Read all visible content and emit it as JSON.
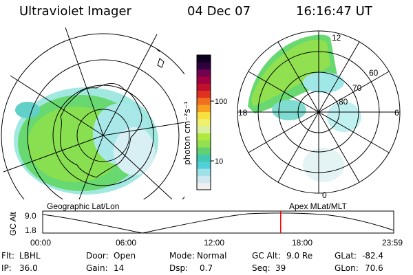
{
  "header": {
    "title": "Ultraviolet Imager",
    "date": "04 Dec 07",
    "time": "16:16:47 UT"
  },
  "colorbar": {
    "label": "photon cm⁻²s⁻¹",
    "ticks": [
      "100",
      "10"
    ],
    "colors": [
      "#f0f0f0",
      "#cfe8f0",
      "#a0e0e8",
      "#50d0d8",
      "#40c8b0",
      "#60d070",
      "#90e050",
      "#b0e840",
      "#d8f0a0",
      "#f0f070",
      "#f8e040",
      "#f8a020",
      "#f07020",
      "#e03020",
      "#c01030",
      "#a00040",
      "#700050",
      "#300040",
      "#100020"
    ]
  },
  "left_panel": {
    "label": "Geographic Lat/Lon"
  },
  "right_panel": {
    "label": "Apex  MLat/MLT",
    "mlt_labels": {
      "top": "12",
      "left": "18",
      "right": "6",
      "bottom": "0"
    },
    "lat_labels": [
      "60",
      "70",
      "80"
    ]
  },
  "timeline": {
    "ylabel": "GC Alt",
    "yticks": [
      "9.0",
      "1.8"
    ],
    "xticks": [
      "00:00",
      "06:00",
      "12:00",
      "18:00",
      "23:59"
    ],
    "current_time_fraction": 0.678,
    "marker_color": "#ff0000"
  },
  "info": {
    "row1": [
      {
        "label": "Flt:",
        "value": "LBHL"
      },
      {
        "label": "Door:",
        "value": "Open"
      },
      {
        "label": "Mode:",
        "value": "Normal"
      },
      {
        "label": "GC Alt:",
        "value": "9.0 Re"
      },
      {
        "label": "GLat:",
        "value": "-82.4"
      }
    ],
    "row2": [
      {
        "label": "IP:",
        "value": "36.0"
      },
      {
        "label": "Gain:",
        "value": "14"
      },
      {
        "label": "Dsp:",
        "value": "0.7"
      },
      {
        "label": "Seq:",
        "value": "39"
      },
      {
        "label": "GLon:",
        "value": "70.6"
      }
    ]
  }
}
